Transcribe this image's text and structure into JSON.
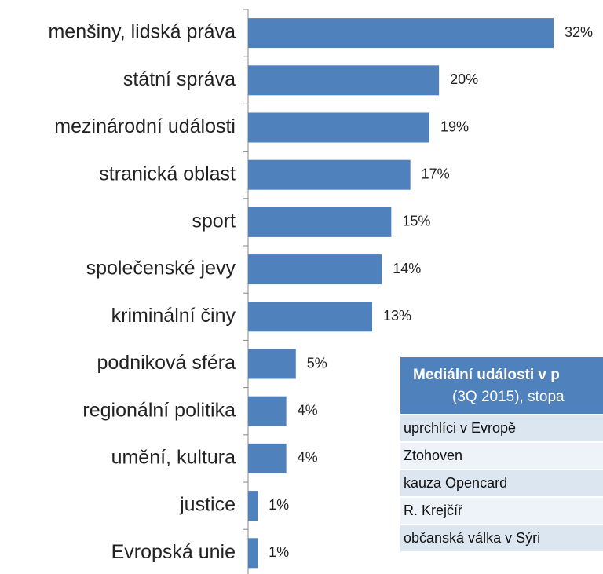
{
  "chart_data": {
    "type": "bar",
    "orientation": "horizontal",
    "categories": [
      "menšiny, lidská práva",
      "státní správa",
      "mezinárodní události",
      "stranická oblast",
      "sport",
      "společenské jevy",
      "kriminální činy",
      "podniková sféra",
      "regionální politika",
      "umění, kultura",
      "justice",
      "Evropská unie"
    ],
    "values": [
      32,
      20,
      19,
      17,
      15,
      14,
      13,
      5,
      4,
      4,
      1,
      1
    ],
    "value_labels": [
      "32%",
      "20%",
      "19%",
      "17%",
      "15%",
      "14%",
      "13%",
      "5%",
      "4%",
      "4%",
      "1%",
      "1%"
    ],
    "color": "#4f81bd",
    "xlim": [
      0,
      32
    ]
  },
  "table": {
    "title": "Mediální události v p",
    "subtitle": "(3Q 2015), stopa",
    "rows": [
      "uprchlíci v Evropě",
      "Ztohoven",
      "kauza Opencard",
      "R. Krejčíř",
      "občanská válka v Sýri"
    ]
  }
}
